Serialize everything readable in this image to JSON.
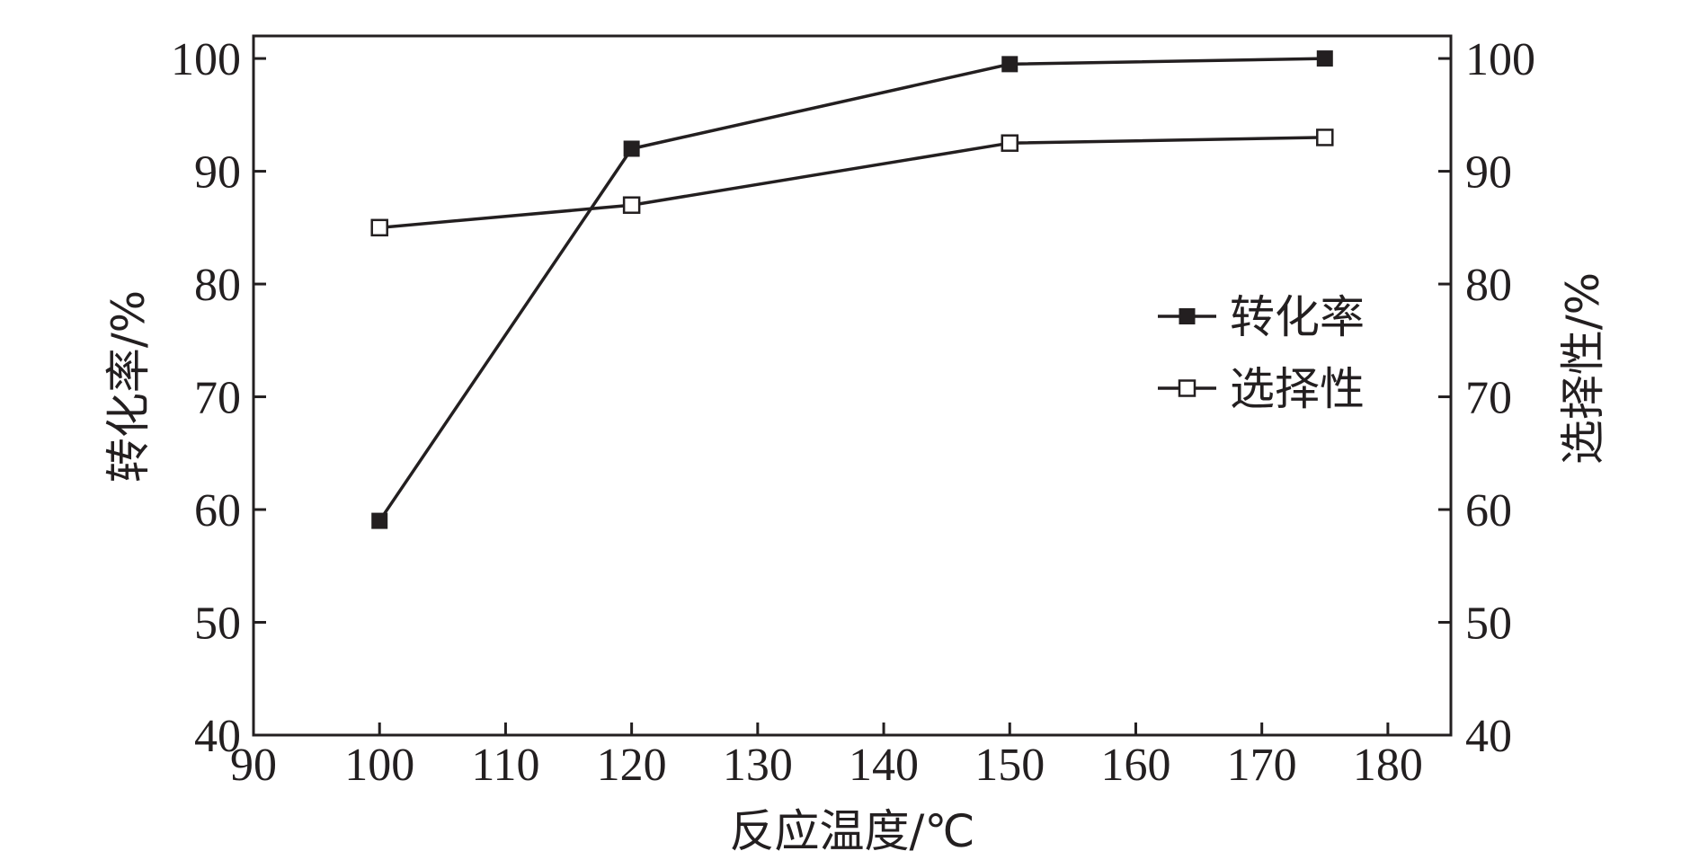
{
  "chart_data": {
    "type": "line",
    "xlabel": "反应温度/℃",
    "ylabel_left": "转化率/%",
    "ylabel_right": "选择性/%",
    "xlim": [
      90,
      185
    ],
    "ylim_left": [
      40,
      102
    ],
    "ylim_right": [
      40,
      102
    ],
    "x_ticks": [
      90,
      100,
      110,
      120,
      130,
      140,
      150,
      160,
      170,
      180
    ],
    "y_ticks_left": [
      40,
      50,
      60,
      70,
      80,
      90,
      100
    ],
    "y_ticks_right": [
      40,
      50,
      60,
      70,
      80,
      90,
      100
    ],
    "grid": false,
    "legend_position": "right-middle",
    "series": [
      {
        "name": "转化率",
        "axis": "left",
        "marker": "filled-square",
        "x": [
          100,
          120,
          150,
          175
        ],
        "values": [
          59,
          92,
          99.5,
          100
        ]
      },
      {
        "name": "选择性",
        "axis": "right",
        "marker": "open-square",
        "x": [
          100,
          120,
          150,
          175
        ],
        "values": [
          85,
          87,
          92.5,
          93
        ]
      }
    ],
    "colors": {
      "ink": "#231f20",
      "background": "#ffffff"
    }
  }
}
